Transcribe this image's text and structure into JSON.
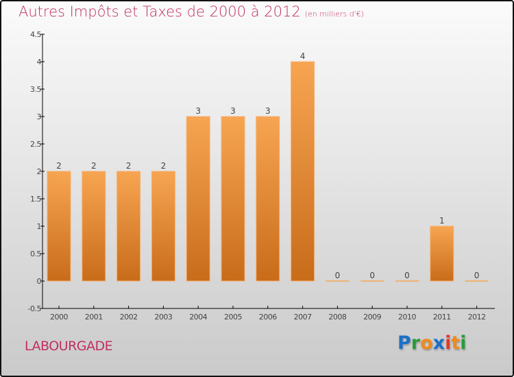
{
  "chart_data": {
    "type": "bar",
    "title": "Autres Impôts et Taxes de 2000 à 2012",
    "unit": "(en milliers d'€)",
    "categories": [
      "2000",
      "2001",
      "2002",
      "2003",
      "2004",
      "2005",
      "2006",
      "2007",
      "2008",
      "2009",
      "2010",
      "2011",
      "2012"
    ],
    "values": [
      2,
      2,
      2,
      2,
      3,
      3,
      3,
      4,
      0,
      0,
      0,
      1,
      0
    ],
    "ylim": [
      -0.5,
      4.5
    ],
    "yticks": [
      "-0.5",
      "0",
      "0.5",
      "1",
      "1.5",
      "2",
      "2.5",
      "3",
      "3.5",
      "4",
      "4.5"
    ],
    "xlabel": "",
    "ylabel": "",
    "bar_color_top": "#f7a552",
    "bar_color_bottom": "#c86c1a"
  },
  "city": "LABOURGADE",
  "logo": {
    "text": "Proxiti",
    "letters": [
      [
        "P",
        "#1a6fc9"
      ],
      [
        "r",
        "#2a9a3a"
      ],
      [
        "o",
        "#f08a1c"
      ],
      [
        "x",
        "#1a6fc9"
      ],
      [
        "i",
        "#e03a2a"
      ],
      [
        "t",
        "#f08a1c"
      ],
      [
        "i",
        "#2a9a3a"
      ]
    ]
  }
}
